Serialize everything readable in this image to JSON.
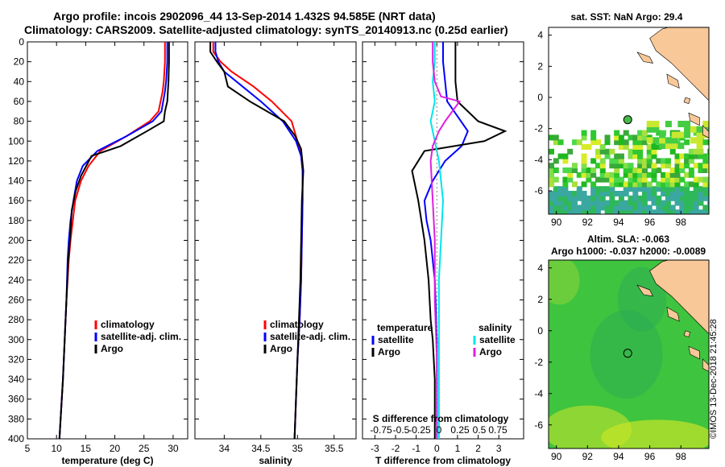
{
  "header": {
    "line1": "Argo profile: incois 2902096_44 13-Sep-2014 1.432S 94.585E (NRT data)",
    "line2": "Climatology: CARS2009. Satellite-adjusted climatology: synTS_20140913.nc (0.25d earlier)"
  },
  "footer": {
    "credit": "©IMOS 13-Dec-2018 21:45:28"
  },
  "colors": {
    "climatology": "#ff0000",
    "satellite": "#0000ff",
    "argo": "#000000",
    "salinity_satellite": "#00e5ee",
    "salinity_argo": "#e020e0",
    "land": "#f8c898",
    "sea": "#ffffff"
  },
  "chart_data": [
    {
      "type": "line",
      "name": "temperature",
      "xlabel": "temperature (deg C)",
      "ylabel": "depth",
      "xlim": [
        5,
        32.5
      ],
      "ylim": [
        400,
        0
      ],
      "xticks": [
        5,
        10,
        15,
        20,
        25,
        30
      ],
      "yticks": [
        0,
        20,
        40,
        60,
        80,
        100,
        120,
        140,
        160,
        180,
        200,
        220,
        240,
        260,
        280,
        300,
        320,
        340,
        360,
        380,
        400
      ],
      "legend": [
        "climatology",
        "satellite-adj. clim.",
        "Argo"
      ],
      "series": [
        {
          "name": "climatology",
          "color": "#ff0000",
          "x": [
            28.6,
            28.6,
            28.4,
            28.2,
            27.5,
            26.0,
            22.0,
            17.5,
            15.5,
            14.2,
            13.2,
            12.8,
            12.4,
            12.1,
            11.7,
            11.4,
            11.1,
            10.9,
            10.7,
            10.5
          ],
          "y": [
            0,
            20,
            40,
            50,
            70,
            80,
            95,
            110,
            125,
            140,
            160,
            180,
            200,
            220,
            260,
            300,
            340,
            360,
            380,
            400
          ]
        },
        {
          "name": "satellite-adj. clim.",
          "color": "#0000ff",
          "x": [
            29.0,
            29.0,
            28.8,
            28.6,
            28.0,
            26.5,
            22.0,
            17.0,
            14.5,
            13.5,
            12.9,
            12.4,
            12.1,
            11.9,
            11.7,
            11.4,
            11.1,
            10.9,
            10.7,
            10.5
          ],
          "y": [
            0,
            20,
            40,
            50,
            70,
            80,
            95,
            110,
            125,
            140,
            160,
            180,
            200,
            220,
            260,
            300,
            340,
            360,
            380,
            400
          ]
        },
        {
          "name": "Argo",
          "color": "#000000",
          "x": [
            29.3,
            29.3,
            29.2,
            29.0,
            28.6,
            28.4,
            25.5,
            21.0,
            16.0,
            14.2,
            13.3,
            12.6,
            12.3,
            12.0,
            11.7,
            11.4,
            11.1,
            10.9,
            10.7,
            10.5
          ],
          "y": [
            0,
            20,
            40,
            60,
            70,
            80,
            90,
            105,
            115,
            135,
            150,
            170,
            200,
            220,
            260,
            300,
            340,
            360,
            380,
            400
          ]
        }
      ]
    },
    {
      "type": "line",
      "name": "salinity",
      "xlabel": "salinity",
      "ylabel": "depth",
      "xlim": [
        33.6,
        35.8
      ],
      "ylim": [
        400,
        0
      ],
      "xticks": [
        34,
        34.5,
        35,
        35.5
      ],
      "yticks": [
        0,
        20,
        40,
        60,
        80,
        100,
        120,
        140,
        160,
        180,
        200,
        220,
        240,
        260,
        280,
        300,
        320,
        340,
        360,
        380,
        400
      ],
      "legend": [
        "climatology",
        "satellite-adj. clim.",
        "Argo"
      ],
      "series": [
        {
          "name": "climatology",
          "color": "#ff0000",
          "x": [
            33.85,
            33.85,
            33.95,
            34.1,
            34.4,
            34.65,
            34.92,
            35.0,
            35.05,
            35.07,
            35.07,
            35.06,
            35.05,
            35.03,
            35.0,
            34.98,
            34.97,
            34.96
          ],
          "y": [
            0,
            10,
            20,
            30,
            45,
            60,
            80,
            100,
            115,
            130,
            160,
            200,
            240,
            280,
            320,
            360,
            380,
            400
          ]
        },
        {
          "name": "satellite-adj. clim.",
          "color": "#0000ff",
          "x": [
            33.88,
            33.88,
            33.92,
            34.0,
            34.25,
            34.5,
            34.8,
            34.98,
            35.05,
            35.07,
            35.07,
            35.06,
            35.05,
            35.03,
            35.0,
            34.98,
            34.97,
            34.96
          ],
          "y": [
            0,
            10,
            20,
            30,
            45,
            60,
            80,
            100,
            115,
            130,
            160,
            200,
            240,
            280,
            320,
            360,
            380,
            400
          ]
        },
        {
          "name": "Argo",
          "color": "#000000",
          "x": [
            33.81,
            33.81,
            33.9,
            34.0,
            34.05,
            34.35,
            34.82,
            34.97,
            35.05,
            35.08,
            35.06,
            35.05,
            35.04,
            35.02,
            35.0,
            34.98,
            34.97,
            34.96
          ],
          "y": [
            0,
            10,
            20,
            30,
            45,
            60,
            80,
            95,
            108,
            130,
            160,
            200,
            240,
            280,
            320,
            360,
            380,
            400
          ]
        }
      ]
    },
    {
      "type": "line",
      "name": "difference",
      "xlabel": "T difference from climatology",
      "top_xlabel": "S difference from climatology",
      "ylabel": "depth",
      "xlim": [
        -3.6,
        4.2
      ],
      "ylim": [
        400,
        0
      ],
      "xticks": [
        -3,
        -2,
        -1,
        0,
        1,
        2,
        3
      ],
      "top_xticks": [
        "-0.75",
        "-0.5",
        "-0.25",
        "0",
        "0.25",
        "0.5",
        "0.75"
      ],
      "yticks": [
        0,
        20,
        40,
        60,
        80,
        100,
        120,
        140,
        160,
        180,
        200,
        220,
        240,
        260,
        280,
        300,
        320,
        340,
        360,
        380,
        400
      ],
      "legend_left_title": "temperature",
      "legend_right_title": "salinity",
      "legend_left": [
        "satellite",
        "Argo"
      ],
      "legend_right": [
        "satellite",
        "Argo"
      ],
      "series": [
        {
          "name": "T satellite",
          "color": "#0000ff",
          "x": [
            0.3,
            0.3,
            0.4,
            0.5,
            1.0,
            1.5,
            1.2,
            0.4,
            -0.2,
            -0.6,
            -0.5,
            -0.3,
            -0.1,
            0,
            0,
            0,
            0
          ],
          "y": [
            0,
            20,
            40,
            60,
            75,
            90,
            105,
            120,
            140,
            160,
            180,
            200,
            240,
            300,
            340,
            380,
            400
          ]
        },
        {
          "name": "T Argo",
          "color": "#000000",
          "x": [
            0.9,
            0.9,
            0.9,
            1.0,
            2.0,
            3.3,
            2.3,
            -0.6,
            -1.2,
            -0.9,
            -0.6,
            -0.4,
            -0.3,
            -0.2,
            -0.1,
            -0.1
          ],
          "y": [
            0,
            20,
            40,
            60,
            80,
            90,
            100,
            110,
            130,
            160,
            200,
            240,
            280,
            300,
            340,
            400
          ]
        },
        {
          "name": "S satellite",
          "color": "#00e5ee",
          "x": [
            -0.1,
            -0.1,
            -0.2,
            -0.1,
            -0.3,
            -0.1,
            0.1,
            0.2,
            0.3,
            0.2,
            0.1,
            0.1,
            0.1,
            0.1
          ],
          "y": [
            0,
            20,
            40,
            60,
            80,
            100,
            120,
            140,
            160,
            200,
            240,
            300,
            360,
            400
          ]
        },
        {
          "name": "S Argo",
          "color": "#e020e0",
          "x": [
            -0.2,
            -0.2,
            -0.1,
            0.2,
            1.1,
            0.4,
            0.1,
            -0.2,
            -0.3,
            -0.2,
            -0.1,
            -0.1,
            0,
            0
          ],
          "y": [
            0,
            20,
            40,
            55,
            60,
            80,
            90,
            105,
            120,
            160,
            200,
            260,
            320,
            400
          ]
        }
      ]
    },
    {
      "type": "heatmap",
      "name": "sst-map",
      "title": "sat. SST: NaN Argo: 29.4",
      "xticks": [
        90,
        92,
        94,
        96,
        98
      ],
      "yticks": [
        4,
        2,
        0,
        -2,
        -4,
        -6
      ],
      "xlim": [
        89.5,
        99.8
      ],
      "ylim": [
        -7.5,
        4.5
      ],
      "argo_position": {
        "lon": 94.585,
        "lat": -1.432
      }
    },
    {
      "type": "heatmap",
      "name": "sla-map",
      "title": "Altim. SLA: -0.063",
      "subtitle": "Argo h1000: -0.037 h2000: -0.0089",
      "xticks": [
        90,
        92,
        94,
        96,
        98
      ],
      "yticks": [
        4,
        2,
        0,
        -2,
        -4,
        -6
      ],
      "xlim": [
        89.5,
        99.8
      ],
      "ylim": [
        -7.5,
        4.5
      ],
      "argo_position": {
        "lon": 94.585,
        "lat": -1.432
      }
    }
  ]
}
